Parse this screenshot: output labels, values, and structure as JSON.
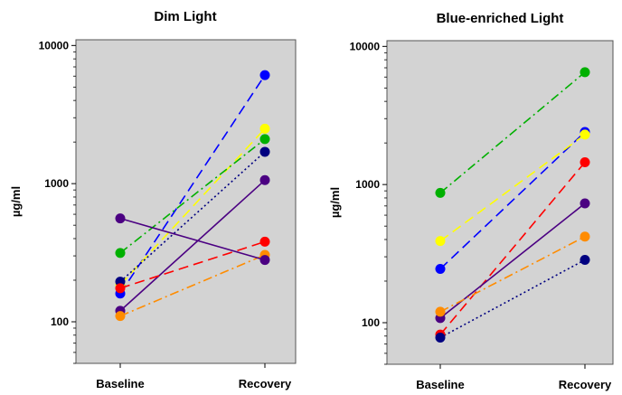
{
  "chart_data": [
    {
      "type": "line",
      "title": "Dim Light",
      "xlabel": "",
      "ylabel": "µg/ml",
      "yscale": "log",
      "ylim": [
        50,
        11000
      ],
      "yticks": [
        100,
        1000,
        10000
      ],
      "yticklabels": [
        "100",
        "1000",
        "10000"
      ],
      "categories": [
        "Baseline",
        "Recovery"
      ],
      "background": "#d3d3d3",
      "series": [
        {
          "name": "blue",
          "color": "#0000ff",
          "dash": "long",
          "values": [
            160,
            6100
          ]
        },
        {
          "name": "yellow",
          "color": "#ffff00",
          "dash": "long",
          "values": [
            185,
            2500
          ]
        },
        {
          "name": "green",
          "color": "#00b000",
          "dash": "dashdot",
          "values": [
            315,
            2100
          ]
        },
        {
          "name": "navy",
          "color": "#000080",
          "dash": "dot",
          "values": [
            195,
            1700
          ]
        },
        {
          "name": "purple",
          "color": "#4b0082",
          "dash": "solid",
          "values": [
            120,
            1060
          ]
        },
        {
          "name": "red",
          "color": "#ff0000",
          "dash": "long",
          "values": [
            175,
            380
          ]
        },
        {
          "name": "orange",
          "color": "#ff8c00",
          "dash": "dashdot",
          "values": [
            110,
            305
          ]
        },
        {
          "name": "purple-2",
          "color": "#4b0082",
          "dash": "solid",
          "values": [
            560,
            280
          ]
        }
      ]
    },
    {
      "type": "line",
      "title": "Blue-enriched Light",
      "xlabel": "",
      "ylabel": "µg/ml",
      "yscale": "log",
      "ylim": [
        50,
        11000
      ],
      "yticks": [
        100,
        1000,
        10000
      ],
      "yticklabels": [
        "100",
        "1000",
        "10000"
      ],
      "categories": [
        "Baseline",
        "Recovery"
      ],
      "background": "#d3d3d3",
      "series": [
        {
          "name": "green",
          "color": "#00b000",
          "dash": "dashdot",
          "values": [
            870,
            6500
          ]
        },
        {
          "name": "blue",
          "color": "#0000ff",
          "dash": "long",
          "values": [
            245,
            2400
          ]
        },
        {
          "name": "yellow",
          "color": "#ffff00",
          "dash": "long",
          "values": [
            390,
            2300
          ]
        },
        {
          "name": "red",
          "color": "#ff0000",
          "dash": "long",
          "values": [
            82,
            1450
          ]
        },
        {
          "name": "purple",
          "color": "#4b0082",
          "dash": "solid",
          "values": [
            108,
            730
          ]
        },
        {
          "name": "orange",
          "color": "#ff8c00",
          "dash": "dashdot",
          "values": [
            120,
            420
          ]
        },
        {
          "name": "navy",
          "color": "#000080",
          "dash": "dot",
          "values": [
            78,
            285
          ]
        }
      ]
    }
  ]
}
